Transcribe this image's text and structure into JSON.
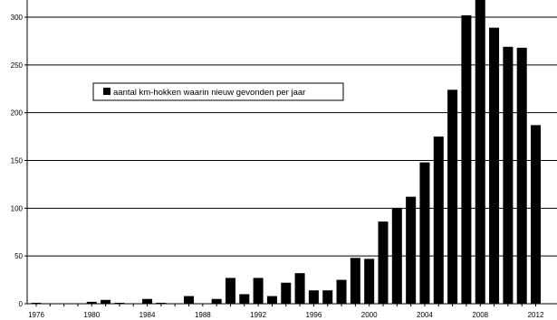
{
  "chart_data": {
    "type": "bar",
    "title": "",
    "xlabel": "",
    "ylabel": "",
    "legend": {
      "label": "aantal km-hokken waarin nieuw gevonden per jaar",
      "placement": "upper-left inside plot"
    },
    "years": [
      1976,
      1977,
      1978,
      1979,
      1980,
      1981,
      1982,
      1983,
      1984,
      1985,
      1986,
      1987,
      1988,
      1989,
      1990,
      1991,
      1992,
      1993,
      1994,
      1995,
      1996,
      1997,
      1998,
      1999,
      2000,
      2001,
      2002,
      2003,
      2004,
      2005,
      2006,
      2007,
      2008,
      2009,
      2010,
      2011,
      2012
    ],
    "values": [
      1,
      0,
      0,
      0,
      2,
      4,
      1,
      0,
      5,
      1,
      0,
      8,
      0,
      5,
      27,
      10,
      27,
      8,
      22,
      32,
      14,
      14,
      25,
      48,
      47,
      86,
      100,
      112,
      148,
      175,
      224,
      302,
      318,
      289,
      269,
      268,
      187
    ],
    "x_tick_labels": [
      "1976",
      "1980",
      "1984",
      "1988",
      "1992",
      "1996",
      "2000",
      "2004",
      "2008",
      "2012"
    ],
    "y_tick_labels": [
      "0",
      "50",
      "100",
      "150",
      "200",
      "250",
      "300"
    ],
    "ylim": [
      0,
      318
    ],
    "grid": "horizontal",
    "bar_color": "#000000"
  }
}
